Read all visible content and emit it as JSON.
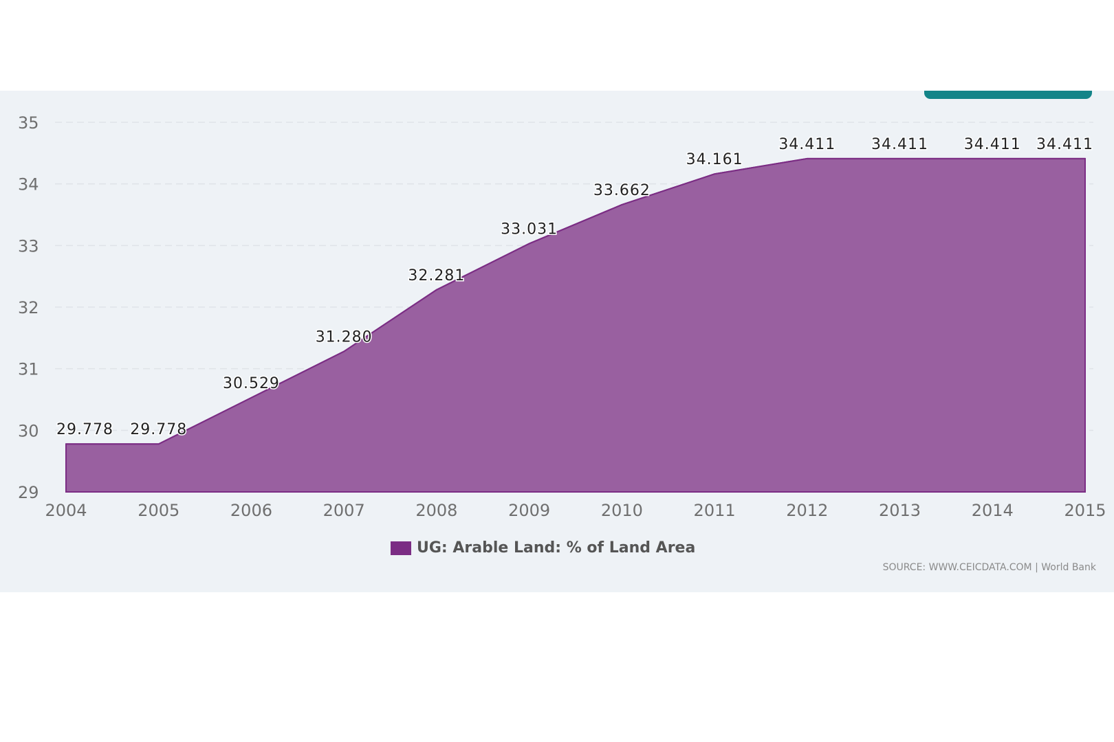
{
  "chart_data": {
    "type": "area",
    "title": "",
    "xlabel": "",
    "ylabel": "",
    "x": [
      "2004",
      "2005",
      "2006",
      "2007",
      "2008",
      "2009",
      "2010",
      "2011",
      "2012",
      "2013",
      "2014",
      "2015"
    ],
    "series": [
      {
        "name": "UG: Arable Land: % of Land Area",
        "values": [
          29.778,
          29.778,
          30.529,
          31.28,
          32.281,
          33.031,
          33.662,
          34.161,
          34.411,
          34.411,
          34.411,
          34.411
        ],
        "labels": [
          "29.778",
          "29.778",
          "30.529",
          "31.280",
          "32.281",
          "33.031",
          "33.662",
          "34.161",
          "34.411",
          "34.411",
          "34.411",
          "34.411"
        ],
        "color": "#7b2d84"
      }
    ],
    "ylim": [
      29,
      35
    ],
    "yticks": [
      "29",
      "30",
      "31",
      "32",
      "33",
      "34",
      "35"
    ],
    "grid": true,
    "legend_position": "bottom-center"
  },
  "source": "SOURCE: WWW.CEICDATA.COM | World Bank",
  "colors": {
    "panel_bg": "#eef2f6",
    "fill": "#9960a0",
    "accent": "#138488"
  }
}
